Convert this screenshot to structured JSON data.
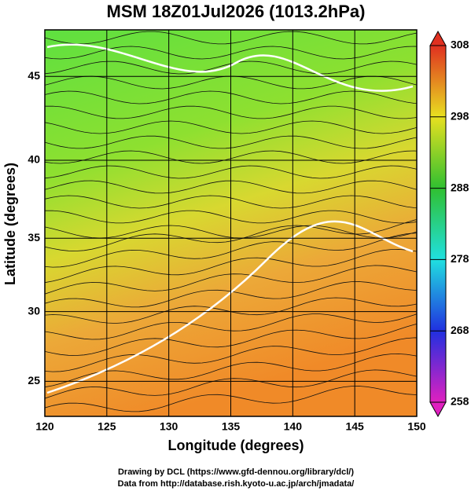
{
  "chart_data": {
    "type": "map",
    "projection": "mercator",
    "title": "MSM 18Z01Jul2026 (1013.2hPa)",
    "x_label": "Longitude (degrees)",
    "y_label": "Latitude  (degrees)",
    "xlim": [
      120,
      150
    ],
    "ylim": [
      22.4,
      47.6
    ],
    "xticks": [
      120,
      125,
      130,
      135,
      140,
      145,
      150
    ],
    "yticks": [
      25,
      30,
      35,
      40,
      45
    ],
    "grid": true,
    "colorbar": {
      "lim": [
        258,
        308
      ],
      "ticks": [
        258,
        268,
        278,
        288,
        298,
        308
      ],
      "colors": [
        "#e020c0",
        "#2030e0",
        "#20e0e0",
        "#30c030",
        "#e8e020",
        "#e03020"
      ]
    },
    "footer": [
      "Drawing by DCL (https://www.gfd-dennou.org/library/dcl/)",
      "Data from http://database.rish.kyoto-u.ac.jp/arch/jmadata/"
    ]
  }
}
